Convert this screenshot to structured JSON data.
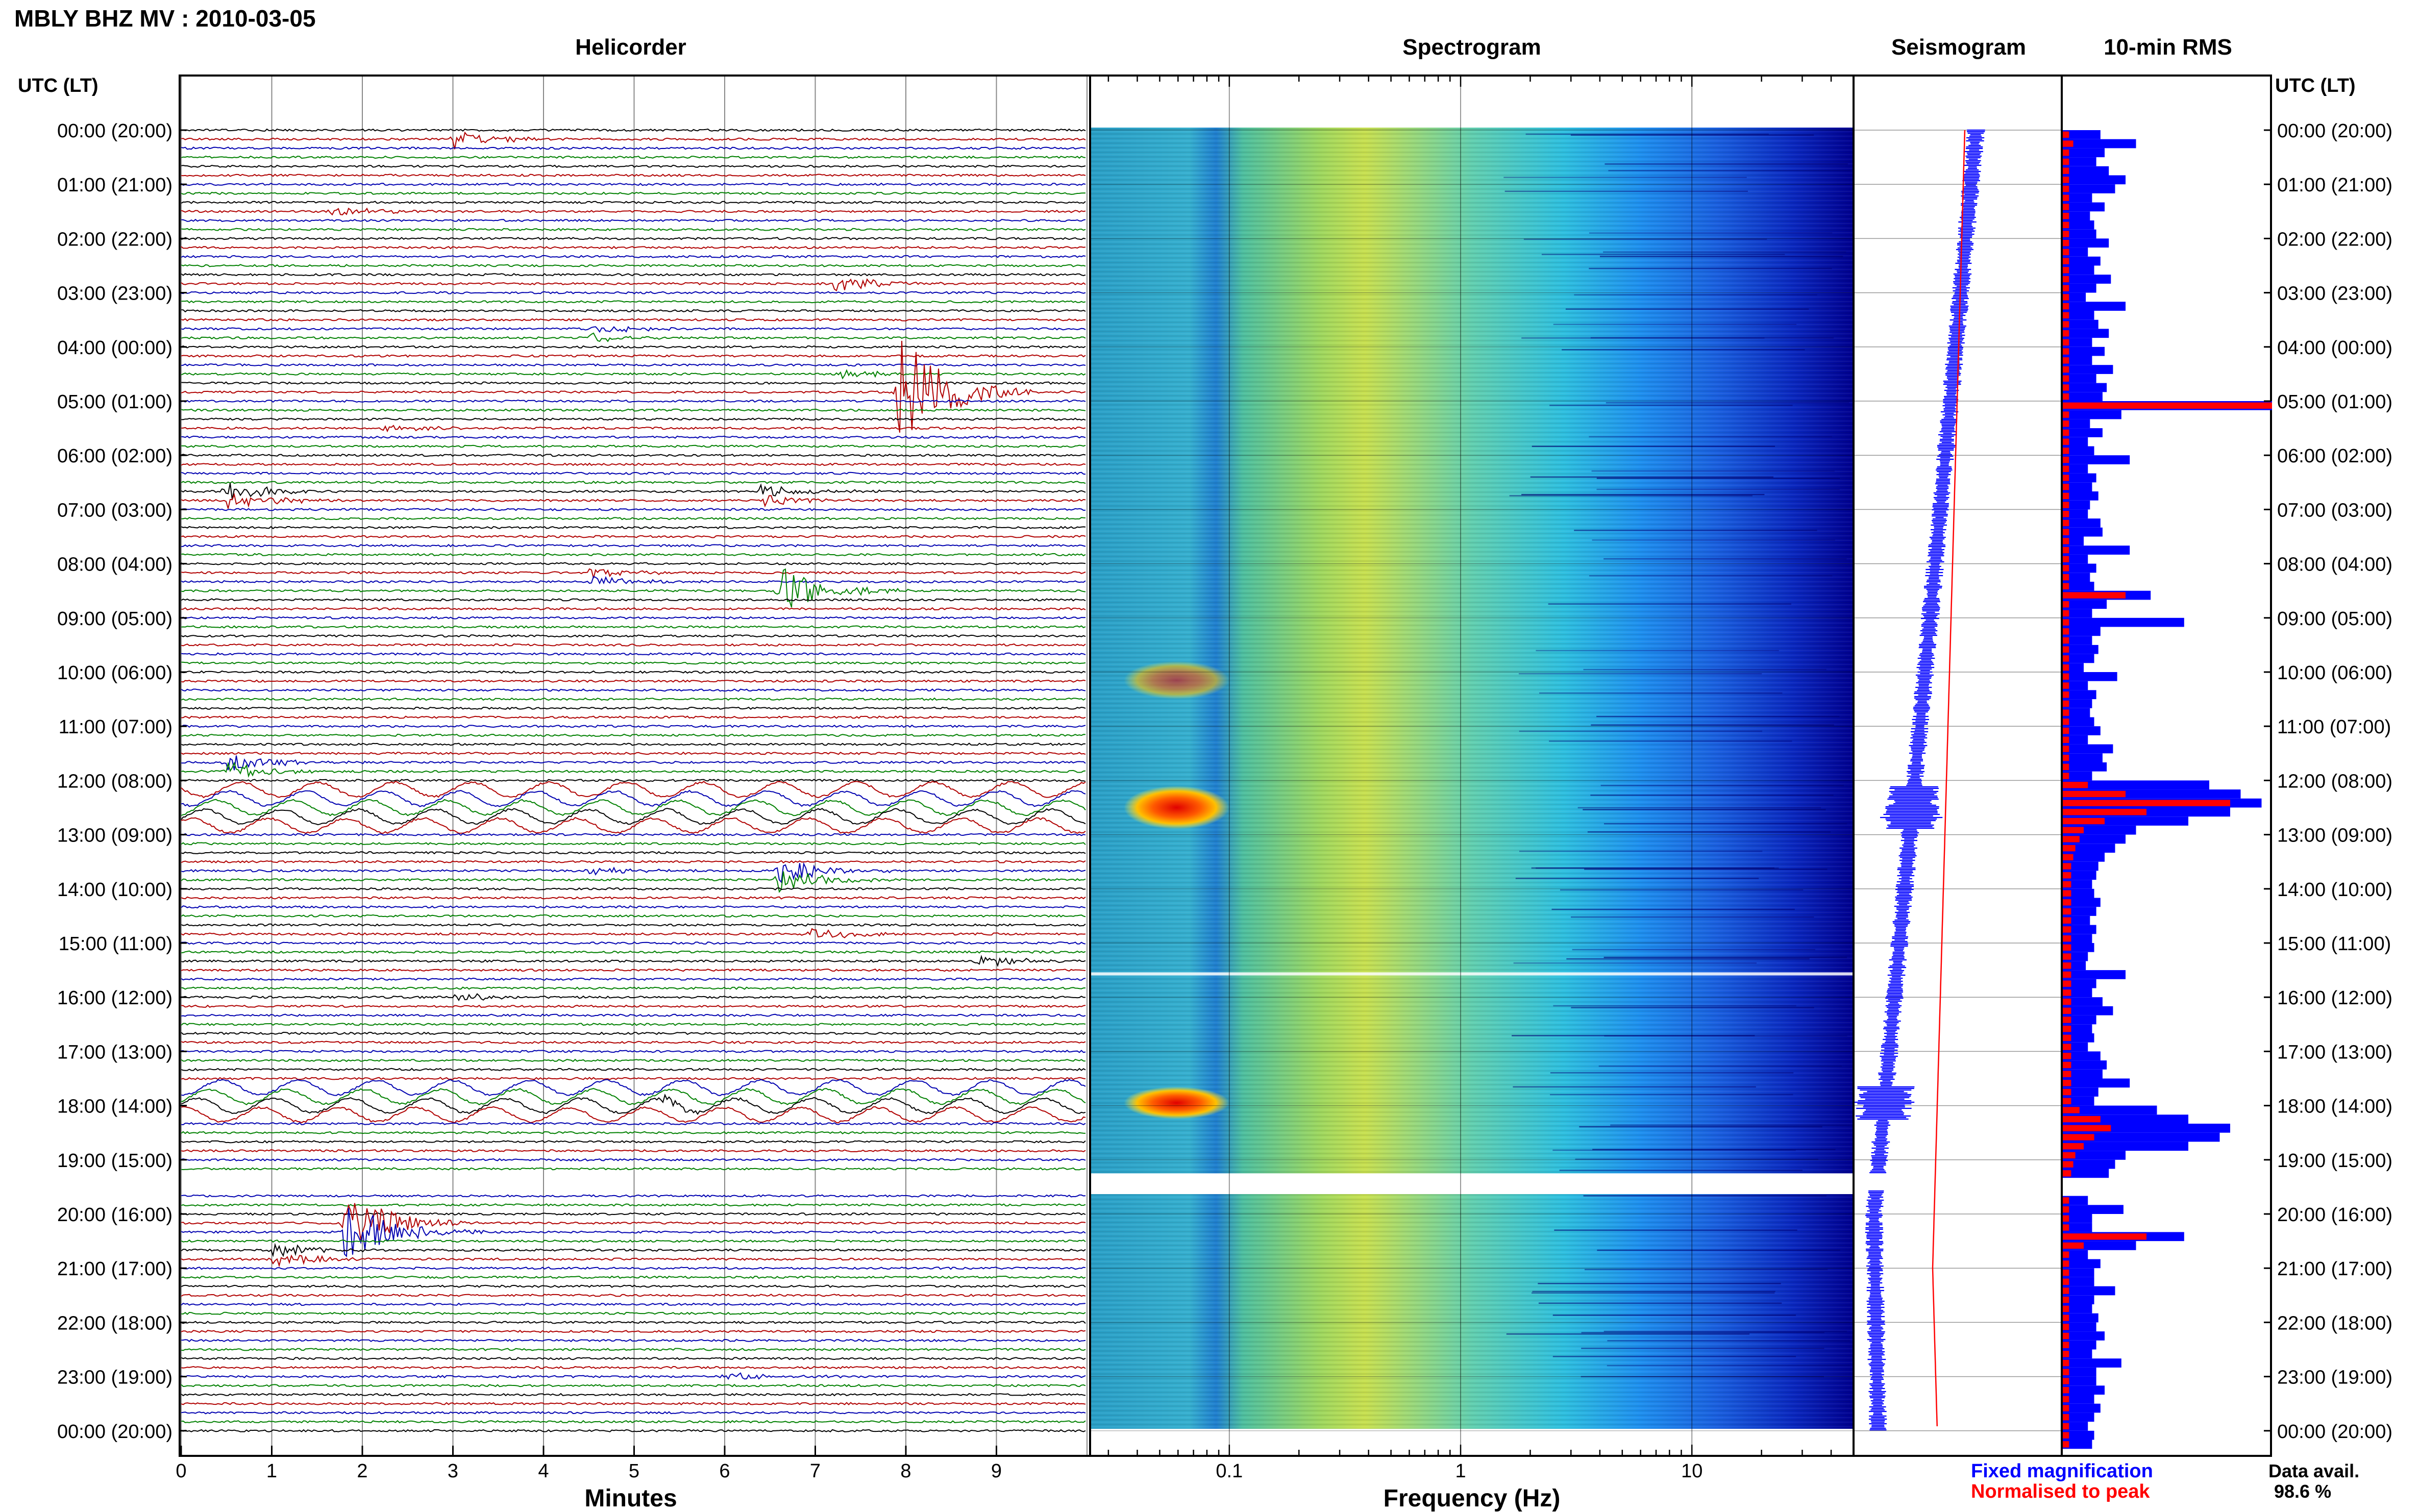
{
  "header": {
    "station_title": "MBLY BHZ MV : 2010-03-05",
    "left_axis_title": "UTC (LT)",
    "right_axis_title": "UTC (LT)"
  },
  "panels": {
    "helicorder": {
      "title": "Helicorder",
      "xlabel": "Minutes"
    },
    "spectrogram": {
      "title": "Spectrogram",
      "xlabel": "Frequency (Hz)"
    },
    "seismogram": {
      "title": "Seismogram"
    },
    "rms": {
      "title": "10-min RMS"
    }
  },
  "legend": {
    "fixed_label": "Fixed magnification",
    "normalised_label": "Normalised to peak",
    "fixed_color": "#0000ff",
    "normalised_color": "#ff0000"
  },
  "availability": {
    "label": "Data avail.",
    "value": "98.6 %"
  },
  "chart_data": {
    "type": "helicorder",
    "time_labels": [
      "00:00 (20:00)",
      "01:00 (21:00)",
      "02:00 (22:00)",
      "03:00 (23:00)",
      "04:00 (00:00)",
      "05:00 (01:00)",
      "06:00 (02:00)",
      "07:00 (03:00)",
      "08:00 (04:00)",
      "09:00 (05:00)",
      "10:00 (06:00)",
      "11:00 (07:00)",
      "12:00 (08:00)",
      "13:00 (09:00)",
      "14:00 (10:00)",
      "15:00 (11:00)",
      "16:00 (12:00)",
      "17:00 (13:00)",
      "18:00 (14:00)",
      "19:00 (15:00)",
      "20:00 (16:00)",
      "21:00 (17:00)",
      "22:00 (18:00)",
      "23:00 (19:00)",
      "00:00 (20:00)"
    ],
    "minute_ticks": [
      "0",
      "1",
      "2",
      "3",
      "4",
      "5",
      "6",
      "7",
      "8",
      "9"
    ],
    "frequency_ticks": [
      "0.1",
      "1",
      "10"
    ],
    "frequency_range_hz": [
      0.025,
      50
    ],
    "trace_colors": [
      "#000000",
      "#b00000",
      "#0000b0",
      "#008000"
    ],
    "data_gap_hours": [
      19.25,
      19.55
    ],
    "events": [
      {
        "hour": 0.1,
        "minute": 3.0,
        "amp": 0.9
      },
      {
        "hour": 1.5,
        "minute": 1.6,
        "amp": 0.5
      },
      {
        "hour": 2.9,
        "minute": 7.2,
        "amp": 0.7
      },
      {
        "hour": 3.75,
        "minute": 4.5,
        "amp": 0.45
      },
      {
        "hour": 4.5,
        "minute": 7.3,
        "amp": 0.4
      },
      {
        "hour": 4.8,
        "minute": 7.9,
        "amp": 6.0
      },
      {
        "hour": 5.5,
        "minute": 2.2,
        "amp": 0.4
      },
      {
        "hour": 6.75,
        "minute": 0.5,
        "amp": 0.9
      },
      {
        "hour": 6.75,
        "minute": 6.4,
        "amp": 0.6
      },
      {
        "hour": 8.5,
        "minute": 6.6,
        "amp": 2.5
      },
      {
        "hour": 8.25,
        "minute": 4.5,
        "amp": 0.5
      },
      {
        "hour": 11.75,
        "minute": 0.5,
        "amp": 0.9
      },
      {
        "hour": 13.75,
        "minute": 6.6,
        "amp": 1.2
      },
      {
        "hour": 13.6,
        "minute": 4.5,
        "amp": 0.4
      },
      {
        "hour": 14.9,
        "minute": 6.9,
        "amp": 0.6
      },
      {
        "hour": 15.3,
        "minute": 8.8,
        "amp": 0.6
      },
      {
        "hour": 16.0,
        "minute": 3.0,
        "amp": 0.4
      },
      {
        "hour": 18.0,
        "minute": 5.3,
        "amp": 0.4
      },
      {
        "hour": 20.25,
        "minute": 1.8,
        "amp": 3.0
      },
      {
        "hour": 20.75,
        "minute": 1.0,
        "amp": 0.7
      },
      {
        "hour": 23.0,
        "minute": 6.0,
        "amp": 0.4
      }
    ],
    "microseism_hours": [
      [
        12.1,
        12.9
      ],
      [
        17.65,
        18.25
      ]
    ],
    "rms_blue": [
      1.8,
      3.5,
      2.0,
      1.6,
      2.2,
      3.0,
      2.5,
      1.4,
      2.0,
      1.3,
      1.5,
      1.6,
      2.2,
      1.2,
      1.8,
      1.5,
      2.3,
      1.6,
      1.1,
      3.0,
      1.5,
      1.7,
      2.2,
      1.4,
      2.0,
      1.4,
      2.4,
      1.6,
      2.1,
      1.9,
      10.0,
      2.8,
      1.3,
      1.9,
      1.2,
      1.5,
      3.2,
      1.2,
      1.6,
      1.4,
      1.7,
      1.3,
      1.2,
      1.8,
      1.9,
      1.0,
      3.2,
      1.2,
      1.6,
      1.3,
      1.5,
      4.2,
      2.1,
      1.4,
      5.8,
      1.8,
      1.4,
      1.7,
      1.5,
      1.0,
      2.6,
      1.2,
      1.6,
      1.4,
      1.3,
      1.5,
      1.8,
      1.2,
      2.4,
      1.9,
      2.1,
      1.4,
      7.0,
      8.5,
      9.5,
      8.0,
      6.0,
      3.5,
      3.0,
      2.5,
      2.0,
      1.7,
      1.6,
      1.4,
      1.5,
      1.8,
      1.6,
      1.3,
      1.6,
      1.4,
      1.5,
      1.2,
      1.1,
      3.0,
      1.6,
      1.4,
      1.9,
      2.4,
      1.6,
      1.4,
      1.5,
      1.2,
      1.8,
      2.1,
      1.9,
      3.2,
      1.7,
      1.5,
      4.5,
      6.0,
      8.0,
      7.5,
      6.0,
      3.0,
      2.5,
      2.2,
      0,
      0,
      1.2,
      2.9,
      1.4,
      1.4,
      5.8,
      3.5,
      1.2,
      1.8,
      1.5,
      1.5,
      2.5,
      1.5,
      1.4,
      1.7,
      1.6,
      2.0,
      1.6,
      1.4,
      2.8,
      1.6,
      1.6,
      2.0,
      1.5,
      1.8,
      1.5,
      1.2,
      1.5,
      1.4
    ],
    "rms_red": [
      0.3,
      0.5,
      0.3,
      0.3,
      0.3,
      0.3,
      0.3,
      0.3,
      0.3,
      0.3,
      0.3,
      0.3,
      0.3,
      0.3,
      0.3,
      0.3,
      0.3,
      0.3,
      0.3,
      0.3,
      0.3,
      0.3,
      0.3,
      0.3,
      0.3,
      0.3,
      0.3,
      0.3,
      0.3,
      0.3,
      10.0,
      0.3,
      0.3,
      0.3,
      0.3,
      0.3,
      0.3,
      0.3,
      0.3,
      0.3,
      0.3,
      0.3,
      0.3,
      0.3,
      0.3,
      0.3,
      0.3,
      0.3,
      0.3,
      0.3,
      0.3,
      3.0,
      0.3,
      0.3,
      0.3,
      0.3,
      0.3,
      0.3,
      0.3,
      0.3,
      0.3,
      0.3,
      0.3,
      0.3,
      0.3,
      0.3,
      0.3,
      0.3,
      0.3,
      0.3,
      0.3,
      0.3,
      1.2,
      3.0,
      8.0,
      4.0,
      2.0,
      1.0,
      0.8,
      0.6,
      0.5,
      0.4,
      0.4,
      0.4,
      0.4,
      0.4,
      0.4,
      0.4,
      0.4,
      0.4,
      0.4,
      0.4,
      0.4,
      0.4,
      0.4,
      0.4,
      0.4,
      0.4,
      0.4,
      0.4,
      0.4,
      0.4,
      0.4,
      0.4,
      0.4,
      0.4,
      0.4,
      0.4,
      0.8,
      1.8,
      2.3,
      1.5,
      1.0,
      0.6,
      0.5,
      0.4,
      0,
      0,
      0.3,
      0.3,
      0.3,
      0.3,
      4.0,
      1.0,
      0.3,
      0.3,
      0.3,
      0.3,
      0.3,
      0.3,
      0.3,
      0.3,
      0.3,
      0.3,
      0.3,
      0.3,
      0.3,
      0.3,
      0.3,
      0.3,
      0.3,
      0.3,
      0.3,
      0.3,
      0.3,
      0.3
    ]
  }
}
